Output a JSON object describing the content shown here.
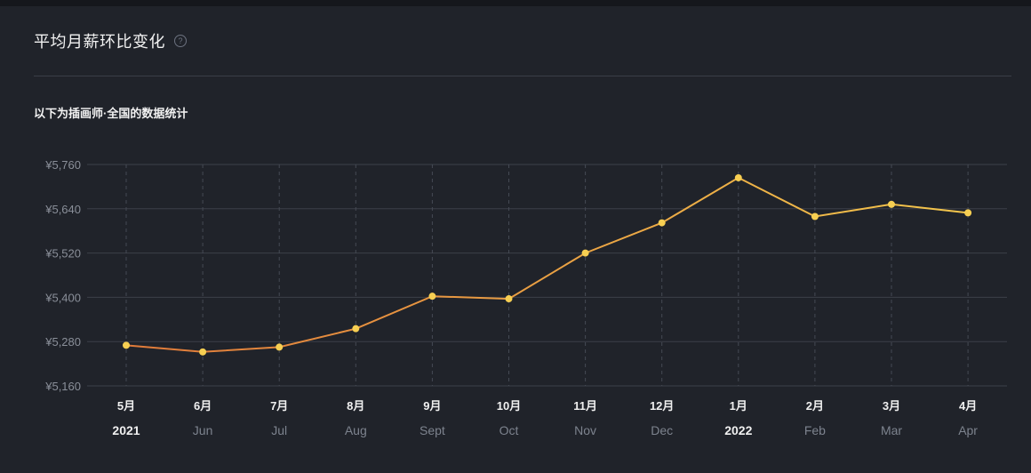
{
  "panel": {
    "title": "平均月薪环比变化",
    "help_icon": "?",
    "subtitle": "以下为插画师·全国的数据统计"
  },
  "colors": {
    "background": "#20232a",
    "grid": "#3c4049",
    "line_start": "#e07a3a",
    "line_end": "#f3c64c",
    "point": "#f7cf52"
  },
  "chart_data": {
    "type": "line",
    "y_ticks": [
      "¥5,160",
      "¥5,280",
      "¥5,400",
      "¥5,520",
      "¥5,640",
      "¥5,760"
    ],
    "ylim": [
      5160,
      5760
    ],
    "x_month_labels": [
      "5月",
      "6月",
      "7月",
      "8月",
      "9月",
      "10月",
      "11月",
      "12月",
      "1月",
      "2月",
      "3月",
      "4月"
    ],
    "x_sub_labels": [
      "2021",
      "Jun",
      "Jul",
      "Aug",
      "Sept",
      "Oct",
      "Nov",
      "Dec",
      "2022",
      "Feb",
      "Mar",
      "Apr"
    ],
    "values": [
      5270,
      5252,
      5265,
      5315,
      5403,
      5396,
      5520,
      5602,
      5724,
      5619,
      5652,
      5629
    ],
    "grid": true
  }
}
